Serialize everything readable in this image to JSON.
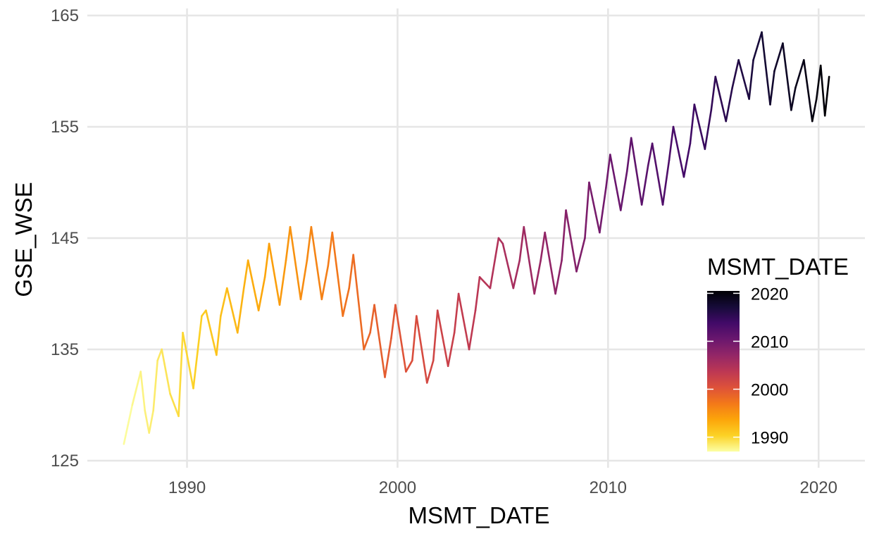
{
  "chart_data": {
    "type": "line",
    "title": "",
    "xlabel": "MSMT_DATE",
    "ylabel": "GSE_WSE",
    "xlim": [
      1985.6,
      2022.2
    ],
    "ylim": [
      125,
      165
    ],
    "x_ticks": [
      1990,
      2000,
      2010,
      2020
    ],
    "y_ticks": [
      125,
      135,
      145,
      155,
      165
    ],
    "grid": true,
    "legend": {
      "title": "MSMT_DATE",
      "type": "colorbar",
      "position": "right",
      "range": [
        1987.0,
        2020.5
      ],
      "ticks": [
        1990,
        2000,
        2010,
        2020
      ],
      "colors": [
        "#fcffa4",
        "#fcd225",
        "#fca50a",
        "#f37819",
        "#dd513a",
        "#bc3754",
        "#932667",
        "#6a176e",
        "#420a68",
        "#160b39",
        "#000004"
      ]
    },
    "color_by": "x",
    "series": [
      {
        "x": [
          1987.0,
          1987.4,
          1987.8,
          1988.0,
          1988.2,
          1988.4,
          1988.6,
          1988.8,
          1989.2,
          1989.6,
          1989.8,
          1990.3,
          1990.7,
          1990.9,
          1991.4,
          1991.6,
          1991.9,
          1992.4,
          1992.7,
          1992.9,
          1993.4,
          1993.7,
          1993.9,
          1994.4,
          1994.7,
          1994.9,
          1995.4,
          1995.7,
          1995.9,
          1996.4,
          1996.7,
          1996.9,
          1997.4,
          1997.7,
          1997.9,
          1998.4,
          1998.7,
          1998.9,
          1999.4,
          1999.7,
          1999.9,
          2000.4,
          2000.7,
          2000.9,
          2001.4,
          2001.7,
          2001.9,
          2002.4,
          2002.7,
          2002.9,
          2003.4,
          2003.7,
          2003.9,
          2004.4,
          2004.8,
          2005.0,
          2005.5,
          2005.8,
          2006.0,
          2006.5,
          2006.8,
          2007.0,
          2007.5,
          2007.8,
          2008.0,
          2008.5,
          2008.9,
          2009.1,
          2009.6,
          2009.9,
          2010.1,
          2010.6,
          2010.9,
          2011.1,
          2011.6,
          2011.9,
          2012.1,
          2012.6,
          2012.9,
          2013.1,
          2013.6,
          2013.9,
          2014.1,
          2014.6,
          2014.9,
          2015.1,
          2015.6,
          2015.9,
          2016.2,
          2016.7,
          2016.9,
          2017.3,
          2017.7,
          2017.9,
          2018.3,
          2018.7,
          2018.9,
          2019.3,
          2019.7,
          2019.9,
          2020.1,
          2020.3,
          2020.5
        ],
        "y": [
          126.5,
          130.0,
          133.0,
          129.5,
          127.5,
          129.5,
          134.0,
          135.0,
          131.0,
          129.0,
          136.5,
          131.5,
          138.0,
          138.5,
          134.5,
          138.0,
          140.5,
          136.5,
          140.5,
          143.0,
          138.5,
          141.5,
          144.5,
          139.0,
          143.0,
          146.0,
          139.5,
          143.0,
          146.0,
          139.5,
          142.5,
          145.5,
          138.0,
          140.5,
          143.5,
          135.0,
          136.5,
          139.0,
          132.5,
          136.0,
          139.0,
          133.0,
          134.0,
          138.0,
          132.0,
          134.0,
          138.5,
          133.5,
          136.5,
          140.0,
          135.0,
          138.5,
          141.5,
          140.5,
          145.0,
          144.5,
          140.5,
          143.0,
          146.0,
          140.0,
          143.0,
          145.5,
          140.0,
          143.0,
          147.5,
          142.0,
          145.0,
          150.0,
          145.5,
          149.5,
          152.5,
          147.5,
          151.0,
          154.0,
          148.0,
          151.5,
          153.5,
          148.0,
          152.0,
          155.0,
          150.5,
          153.5,
          157.0,
          153.0,
          156.5,
          159.5,
          155.5,
          158.5,
          161.0,
          157.5,
          161.0,
          163.5,
          157.0,
          160.0,
          162.5,
          156.5,
          158.5,
          161.0,
          155.5,
          157.5,
          160.5,
          156.0,
          159.5
        ]
      }
    ]
  }
}
